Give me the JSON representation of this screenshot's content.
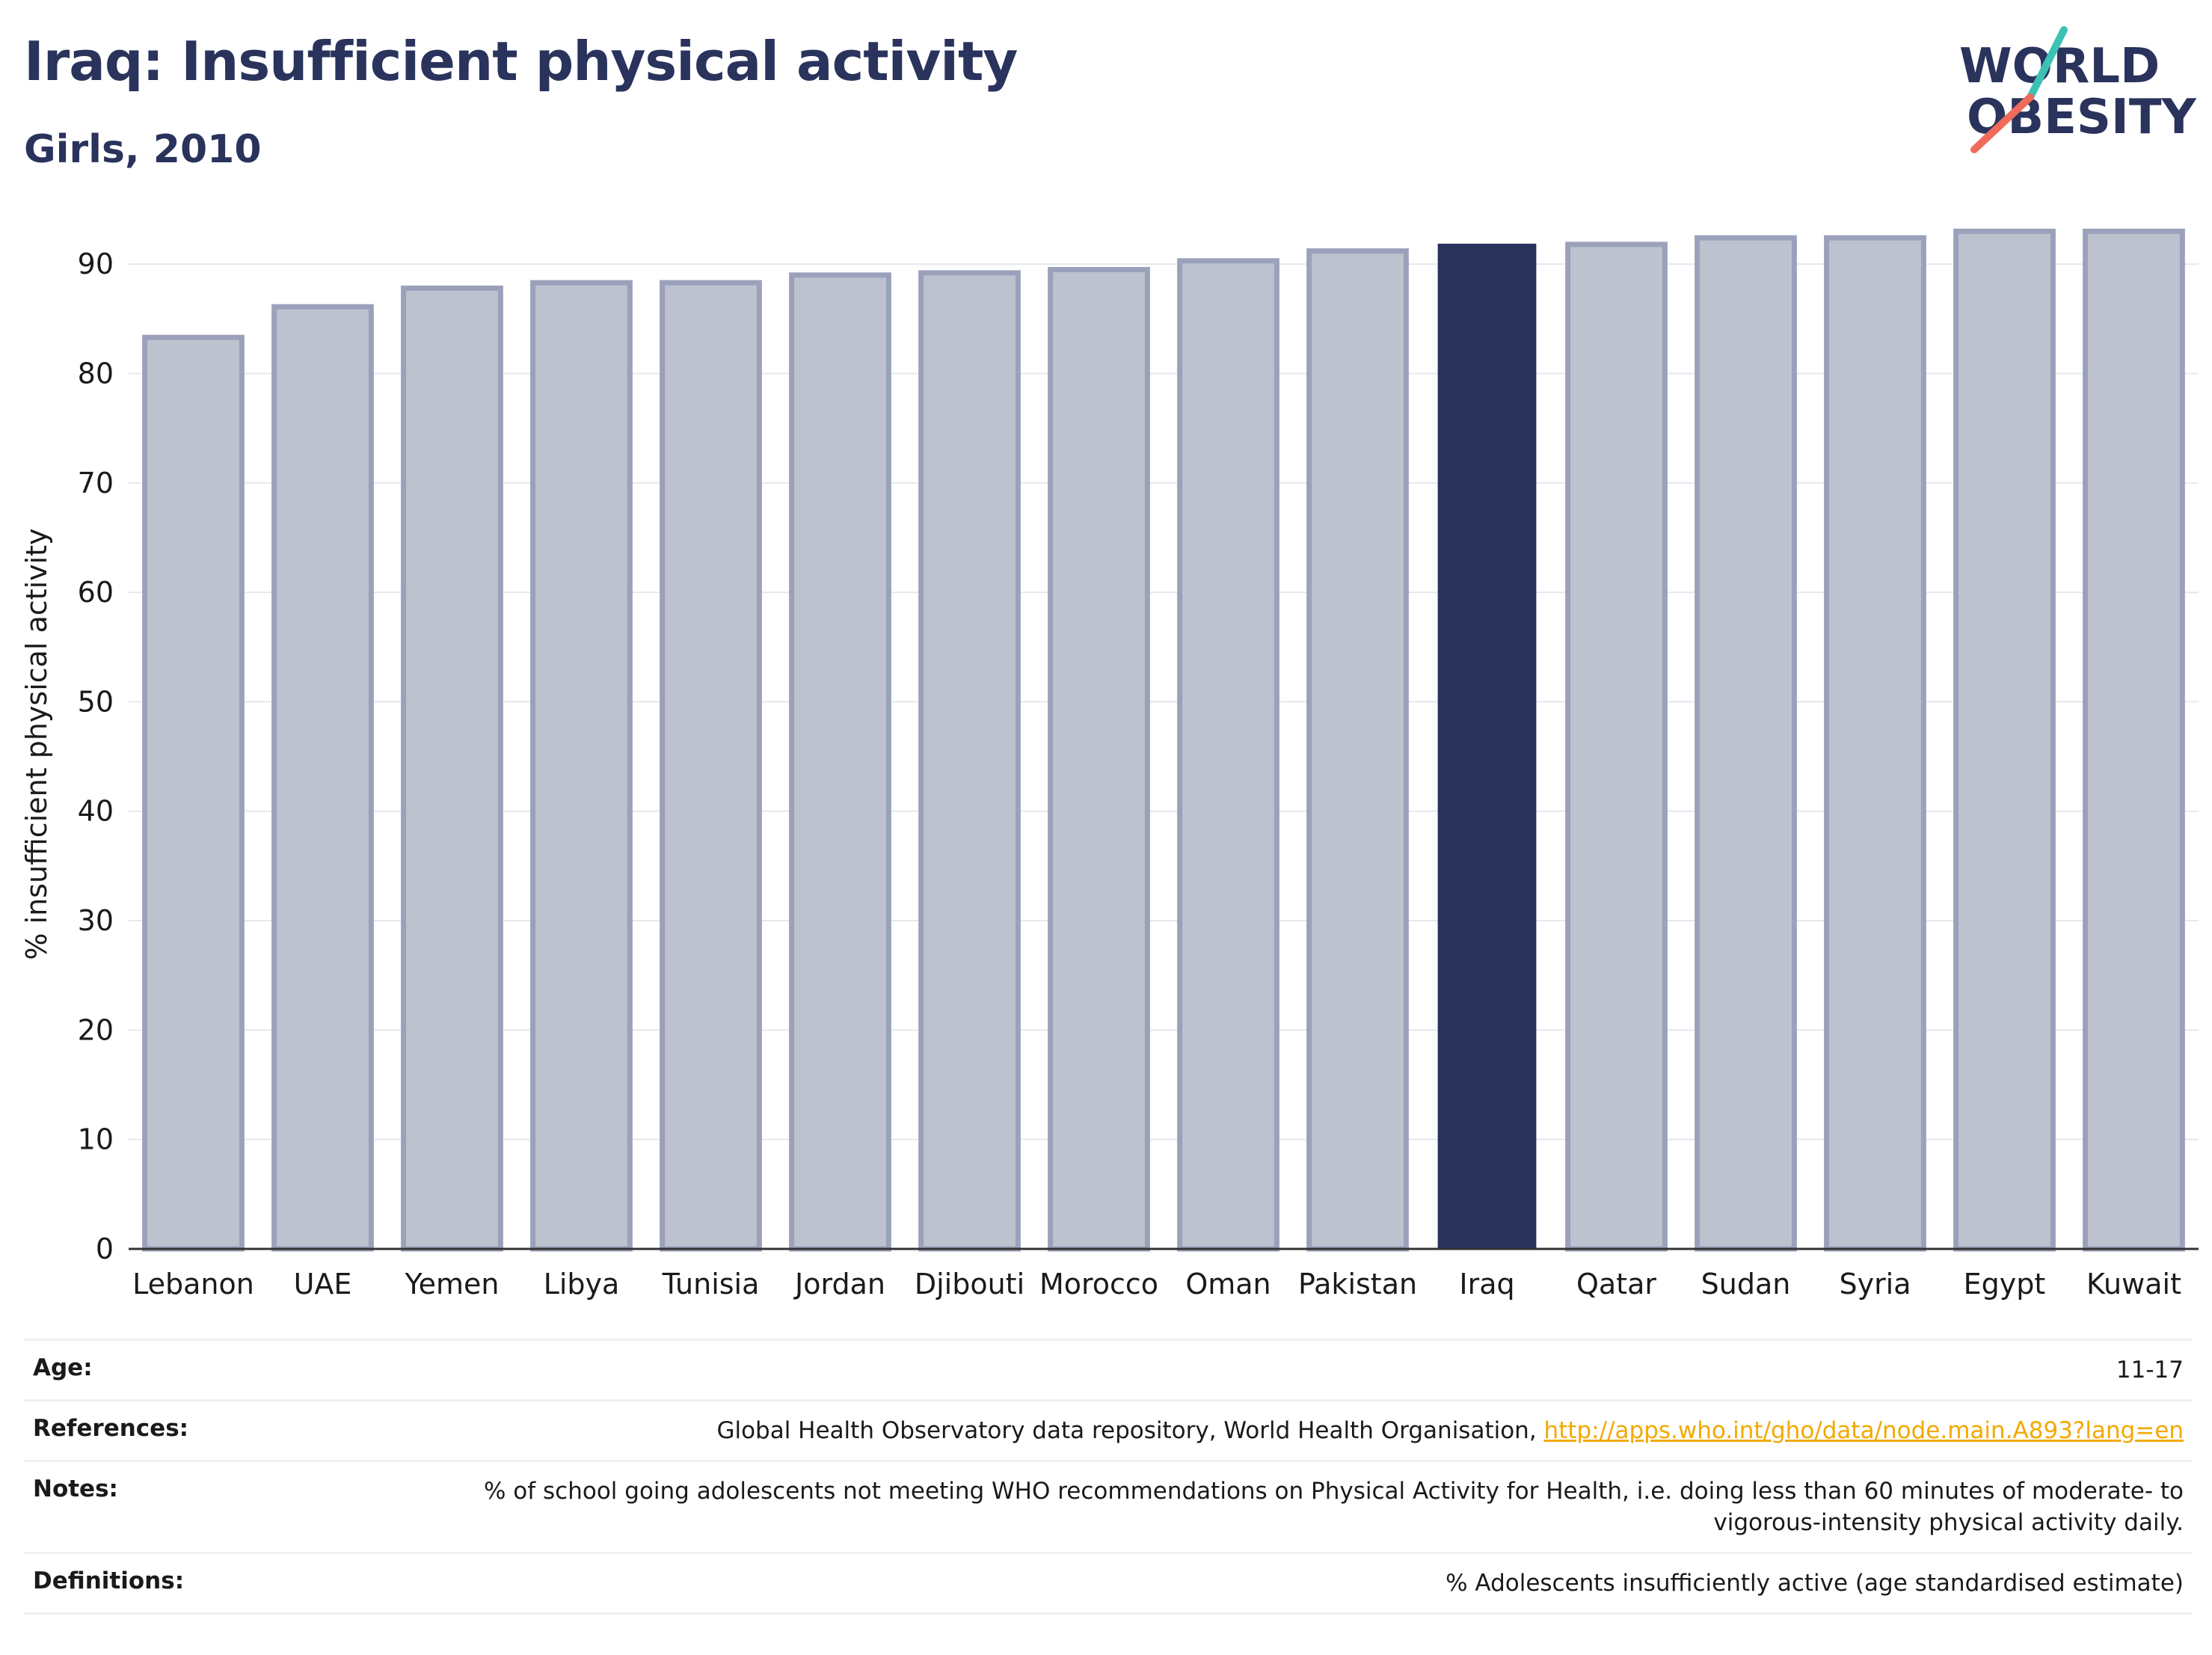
{
  "header": {
    "title": "Iraq: Insufficient physical activity",
    "subtitle": "Girls, 2010"
  },
  "logo": {
    "line1": "WORLD",
    "line2": "OBESITY",
    "text_color": "#29335c",
    "slash_colors": [
      "#3cc2b5",
      "#f06b5a"
    ]
  },
  "chart_data": {
    "type": "bar",
    "ylabel": "% insufficient physical activity",
    "ylim": [
      0,
      95
    ],
    "yticks": [
      0,
      10,
      20,
      30,
      40,
      50,
      60,
      70,
      80,
      90
    ],
    "grid": true,
    "highlight_category": "Iraq",
    "colors": {
      "highlight": "#29335c",
      "default": "#bec2cf",
      "default_edge": "#9ba1bb"
    },
    "categories": [
      "Lebanon",
      "UAE",
      "Yemen",
      "Libya",
      "Tunisia",
      "Jordan",
      "Djibouti",
      "Morocco",
      "Oman",
      "Pakistan",
      "Iraq",
      "Qatar",
      "Sudan",
      "Syria",
      "Egypt",
      "Kuwait"
    ],
    "values": [
      83.3,
      86.1,
      87.8,
      88.3,
      88.3,
      89.0,
      89.2,
      89.5,
      90.3,
      91.2,
      91.8,
      91.8,
      92.4,
      92.4,
      93.0,
      93.0
    ]
  },
  "info": {
    "age_label": "Age:",
    "age_value": "11-17",
    "references_label": "References:",
    "references_text": "Global Health Observatory data repository, World Health Organisation, ",
    "references_link": "http://apps.who.int/gho/data/node.main.A893?lang=en",
    "notes_label": "Notes:",
    "notes_value": "% of school going adolescents not meeting WHO recommendations on Physical Activity for Health, i.e. doing less than 60 minutes of moderate- to vigorous-intensity physical activity daily.",
    "definitions_label": "Definitions:",
    "definitions_value": "% Adolescents insufficiently active (age standardised estimate)"
  }
}
